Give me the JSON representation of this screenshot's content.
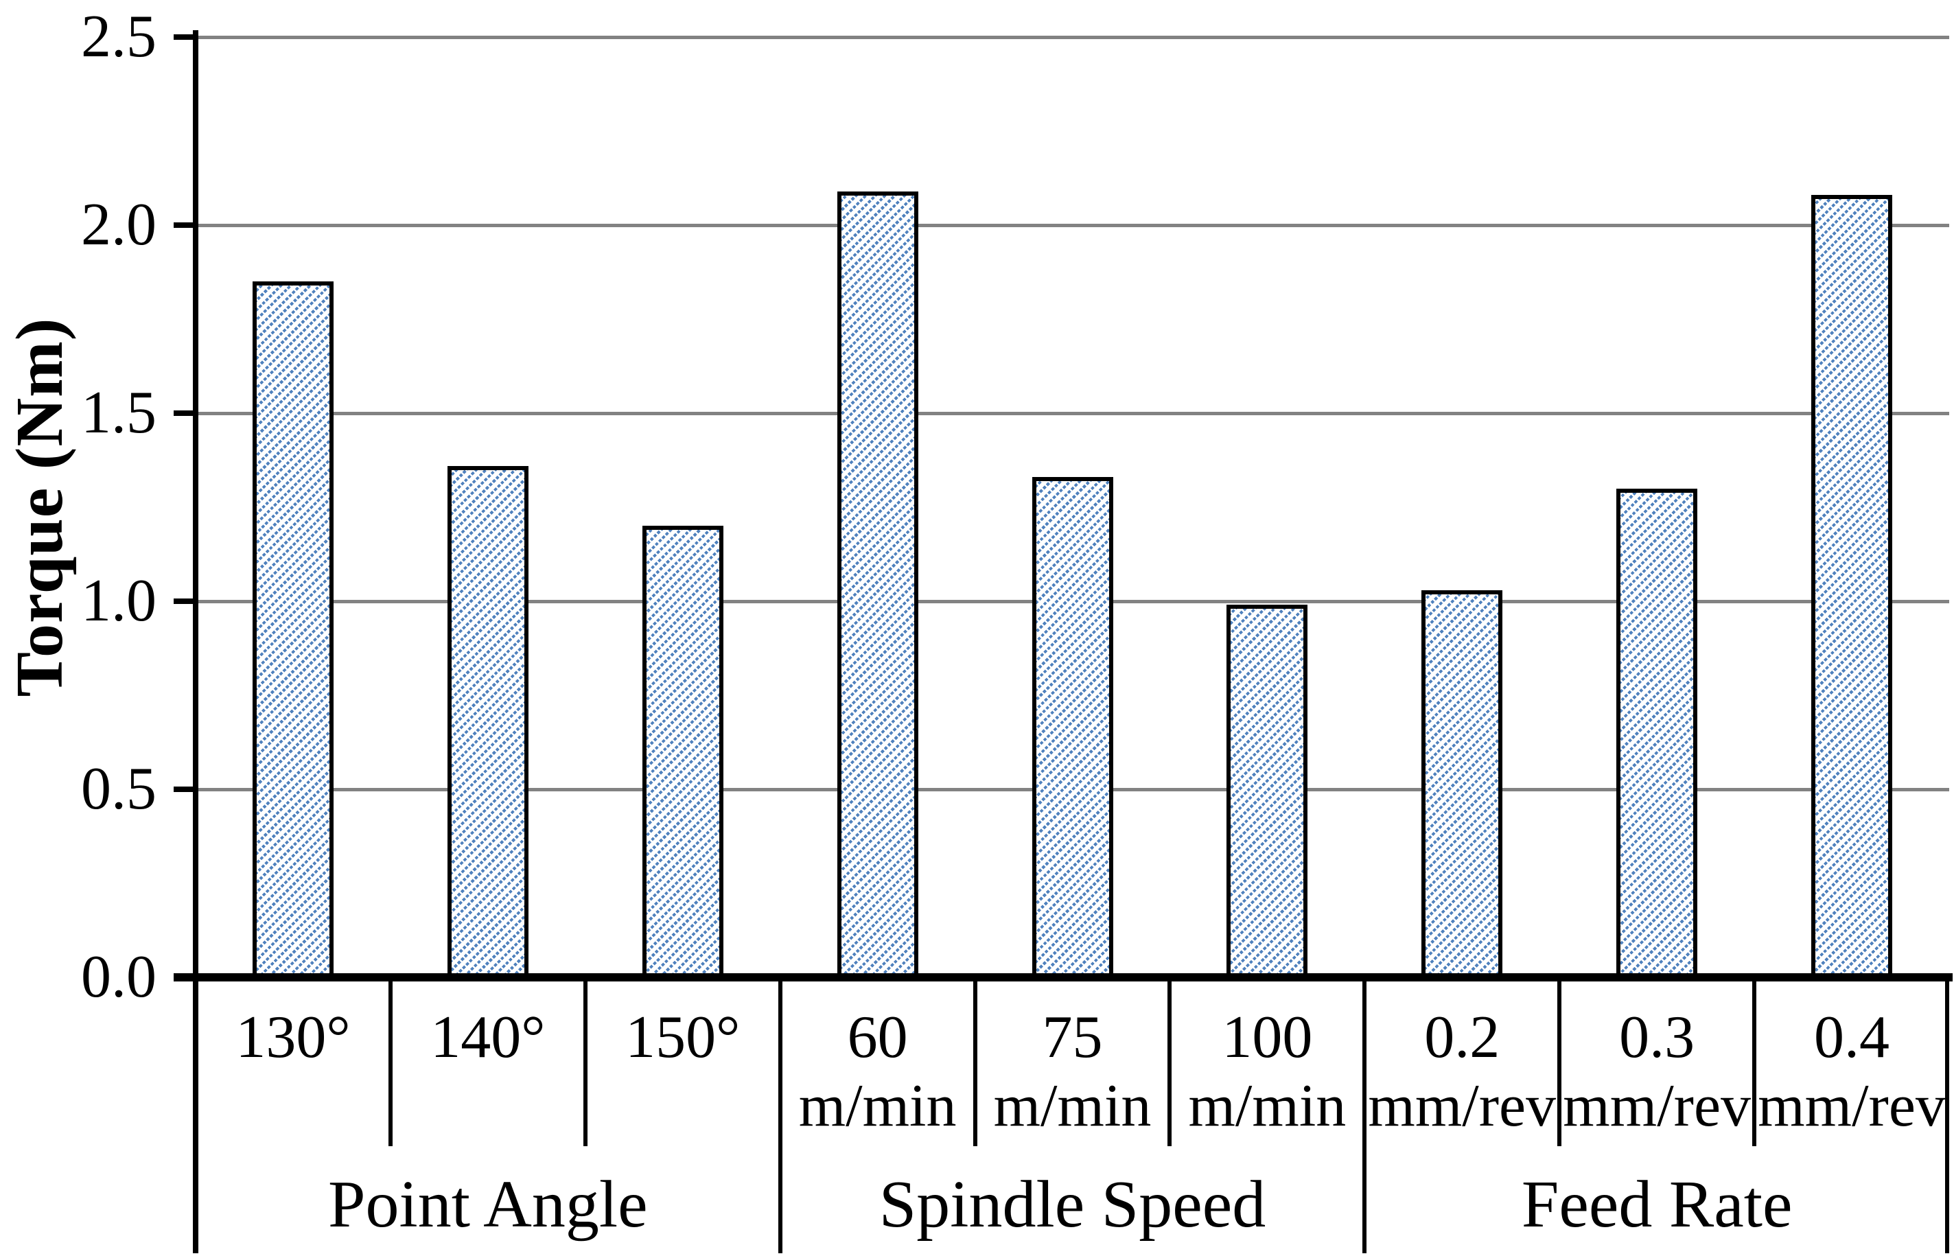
{
  "chart_data": {
    "type": "bar",
    "title": "",
    "ylabel": "Torque (Nm)",
    "xlabel": "",
    "ylim": [
      0.0,
      2.5
    ],
    "ytick_step": 0.5,
    "yticks": [
      "0.0",
      "0.5",
      "1.0",
      "1.5",
      "2.0",
      "2.5"
    ],
    "grid": true,
    "legend": "none",
    "groups": [
      {
        "label": "Point Angle",
        "categories": [
          [
            "130°"
          ],
          [
            "140°"
          ],
          [
            "150°"
          ]
        ],
        "values": [
          1.85,
          1.36,
          1.2
        ]
      },
      {
        "label": "Spindle Speed",
        "categories": [
          [
            "60",
            "m/min"
          ],
          [
            "75",
            "m/min"
          ],
          [
            "100",
            "m/min"
          ]
        ],
        "values": [
          2.09,
          1.33,
          0.99
        ]
      },
      {
        "label": "Feed Rate",
        "categories": [
          [
            "0.2",
            "mm/rev"
          ],
          [
            "0.3",
            "mm/rev"
          ],
          [
            "0.4",
            "mm/rev"
          ]
        ],
        "values": [
          1.03,
          1.3,
          2.08
        ]
      }
    ],
    "bar_style": {
      "hatch": "diagonal-up-dashed",
      "hatch_color": "#4f81bd",
      "background_color": "#ffffff",
      "border_color": "#000000"
    },
    "gridline_color": "#828282",
    "axis_color": "#000000"
  }
}
